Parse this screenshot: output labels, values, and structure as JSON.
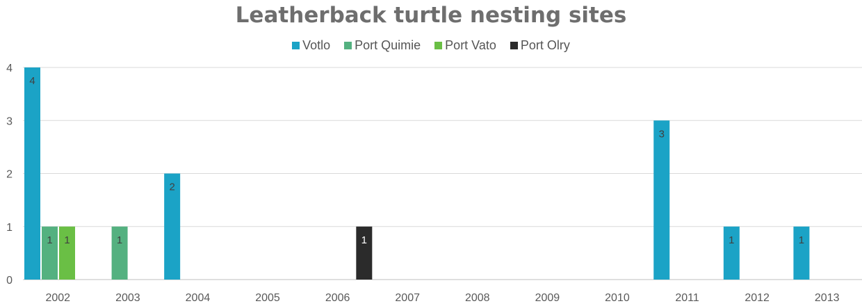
{
  "chart_data": {
    "type": "bar",
    "title": "Leatherback turtle nesting sites",
    "categories": [
      "2002",
      "2003",
      "2004",
      "2005",
      "2006",
      "2007",
      "2008",
      "2009",
      "2010",
      "2011",
      "2012",
      "2013"
    ],
    "ylim": [
      0,
      4
    ],
    "yticks": [
      "0",
      "1",
      "2",
      "3",
      "4"
    ],
    "legend_position": "top",
    "grid": true,
    "series": [
      {
        "name": "Votlo",
        "color": "#1ba3c6",
        "values": [
          4,
          0,
          2,
          0,
          0,
          0,
          0,
          0,
          0,
          3,
          1,
          1
        ]
      },
      {
        "name": "Port Quimie",
        "color": "#54b180",
        "values": [
          1,
          1,
          0,
          0,
          0,
          0,
          0,
          0,
          0,
          0,
          0,
          0
        ]
      },
      {
        "name": "Port Vato",
        "color": "#6abf45",
        "values": [
          1,
          0,
          0,
          0,
          0,
          0,
          0,
          0,
          0,
          0,
          0,
          0
        ]
      },
      {
        "name": "Port Olry",
        "color": "#2b2b2b",
        "values": [
          0,
          0,
          0,
          0,
          1,
          0,
          0,
          0,
          0,
          0,
          0,
          0
        ]
      }
    ]
  }
}
